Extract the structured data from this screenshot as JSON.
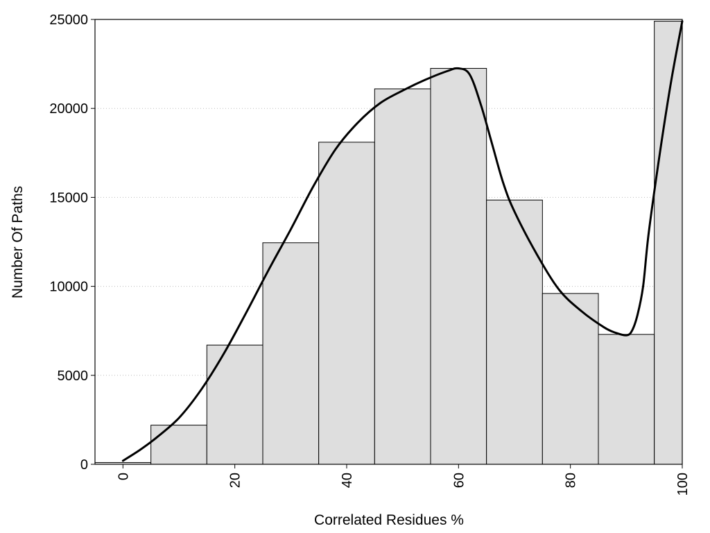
{
  "chart_data": {
    "type": "bar",
    "title": "",
    "xlabel": "Correlated Residues %",
    "ylabel": "Number Of Paths",
    "xlim": [
      -5,
      100
    ],
    "ylim": [
      0,
      25000
    ],
    "x_ticks": [
      0,
      20,
      40,
      60,
      80,
      100
    ],
    "y_ticks": [
      0,
      5000,
      10000,
      15000,
      20000,
      25000
    ],
    "grid": "horizontal dotted",
    "legend": "none",
    "bar_width": 10,
    "bars": [
      {
        "x": 0,
        "value": 100
      },
      {
        "x": 10,
        "value": 2200
      },
      {
        "x": 20,
        "value": 6700
      },
      {
        "x": 30,
        "value": 12450
      },
      {
        "x": 40,
        "value": 18100
      },
      {
        "x": 50,
        "value": 21100
      },
      {
        "x": 60,
        "value": 22250
      },
      {
        "x": 70,
        "value": 14850
      },
      {
        "x": 80,
        "value": 9600
      },
      {
        "x": 90,
        "value": 7300
      },
      {
        "x": 100,
        "value": 24900
      }
    ],
    "curve": {
      "x": [
        0,
        3,
        6,
        10,
        14,
        18,
        22,
        26,
        30,
        34,
        38,
        42,
        46,
        50,
        54,
        58,
        60,
        62,
        64,
        66,
        68,
        70,
        74,
        78,
        82,
        86,
        88,
        90,
        91,
        92,
        93,
        94,
        96,
        98,
        100
      ],
      "y": [
        200,
        800,
        1500,
        2600,
        4200,
        6200,
        8500,
        10900,
        13200,
        15600,
        17700,
        19200,
        20300,
        21000,
        21600,
        22100,
        22250,
        21900,
        20200,
        18000,
        15800,
        14200,
        11800,
        9800,
        8600,
        7700,
        7400,
        7250,
        7500,
        8400,
        10000,
        13000,
        17500,
        21500,
        24900
      ]
    },
    "colors": {
      "bar_fill": "#dedede",
      "bar_stroke": "#000000",
      "curve": "#000000",
      "grid": "#bbbbbb"
    }
  }
}
